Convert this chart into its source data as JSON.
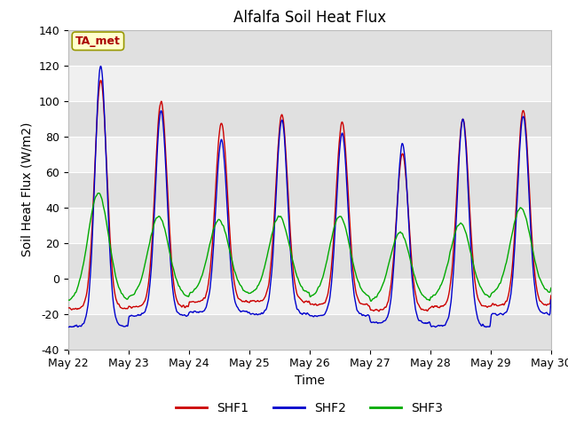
{
  "title": "Alfalfa Soil Heat Flux",
  "xlabel": "Time",
  "ylabel": "Soil Heat Flux (W/m2)",
  "ylim": [
    -40,
    140
  ],
  "yticks": [
    -40,
    -20,
    0,
    20,
    40,
    60,
    80,
    100,
    120,
    140
  ],
  "legend_labels": [
    "SHF1",
    "SHF2",
    "SHF3"
  ],
  "line_colors": [
    "#cc0000",
    "#0000cc",
    "#00aa00"
  ],
  "annotation_text": "TA_met",
  "annotation_color": "#aa0000",
  "annotation_bg": "#ffffcc",
  "annotation_edge": "#999900",
  "plot_bg_light": "#f0f0f0",
  "plot_bg_dark": "#e0e0e0",
  "fig_bg": "#ffffff",
  "days": [
    "May 22",
    "May 23",
    "May 24",
    "May 25",
    "May 26",
    "May 27",
    "May 28",
    "May 29",
    "May 30"
  ],
  "n_points": 2000,
  "peaks_shf1": [
    112,
    100,
    88,
    92,
    88,
    70,
    90,
    95
  ],
  "peaks_shf2": [
    120,
    95,
    78,
    90,
    82,
    76,
    90,
    92
  ],
  "peaks_shf3": [
    48,
    35,
    33,
    35,
    35,
    26,
    31,
    40
  ],
  "troughs_shf1": [
    -17,
    -16,
    -13,
    -13,
    -15,
    -18,
    -16,
    -15
  ],
  "troughs_shf2": [
    -27,
    -21,
    -19,
    -20,
    -21,
    -25,
    -27,
    -20
  ],
  "troughs_shf3": [
    -13,
    -11,
    -9,
    -9,
    -11,
    -13,
    -11,
    -9
  ]
}
